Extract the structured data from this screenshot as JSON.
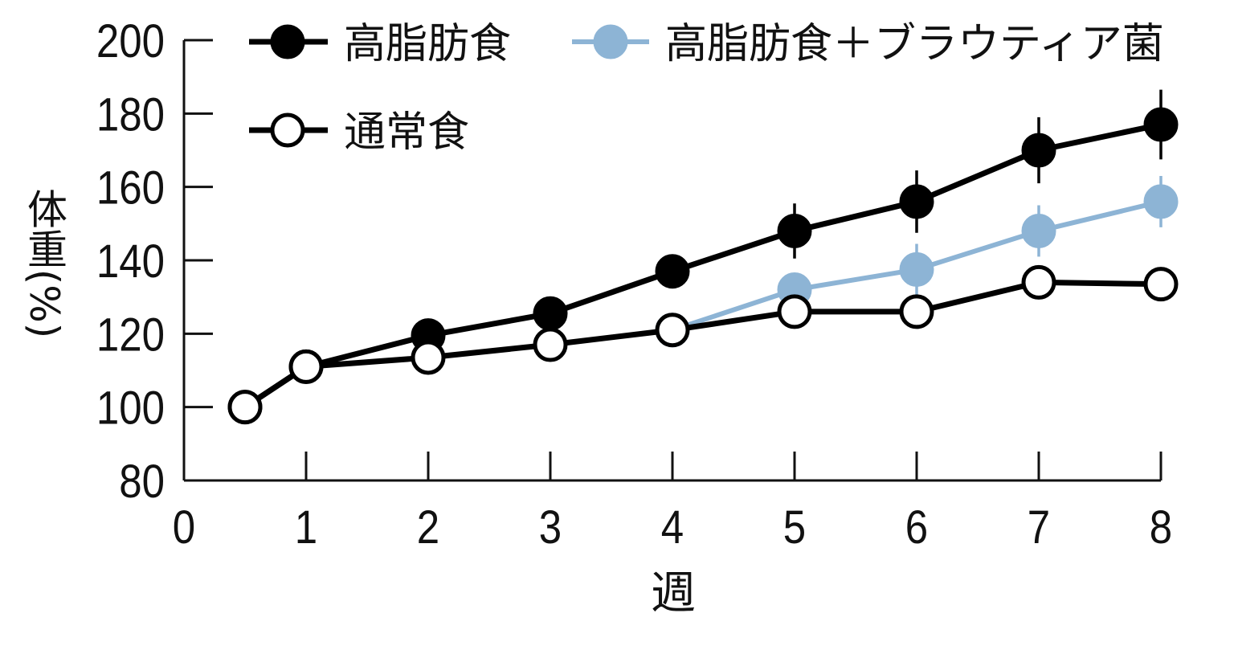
{
  "chart_data": {
    "type": "line",
    "xlabel": "週",
    "ylabel": "体重(%)",
    "xlim": [
      0,
      8
    ],
    "ylim": [
      80,
      200
    ],
    "xticks": [
      0,
      1,
      2,
      3,
      4,
      5,
      6,
      7,
      8
    ],
    "yticks": [
      80,
      100,
      120,
      140,
      160,
      180,
      200
    ],
    "grid": false,
    "legend_position": "top-left",
    "series": [
      {
        "name": "高脂肪食",
        "color": "#000000",
        "marker": "filled-circle",
        "x": [
          0.5,
          1,
          2,
          3,
          4,
          5,
          6,
          7,
          8
        ],
        "y": [
          100,
          111,
          119.5,
          125.5,
          137,
          148,
          156,
          170,
          177
        ],
        "error": [
          null,
          null,
          null,
          null,
          null,
          7.5,
          8.5,
          9,
          9.5
        ]
      },
      {
        "name": "高脂肪食＋ブラウティア菌",
        "color": "#8db4d5",
        "marker": "filled-circle",
        "x": [
          4,
          5,
          6,
          7,
          8
        ],
        "y": [
          121,
          132,
          137.5,
          148,
          156
        ],
        "error": [
          null,
          null,
          7,
          7,
          7
        ]
      },
      {
        "name": "通常食",
        "color": "#000000",
        "marker": "open-circle",
        "x": [
          0.5,
          1,
          2,
          3,
          4,
          5,
          6,
          7,
          8
        ],
        "y": [
          100,
          111,
          113.5,
          117,
          121,
          126,
          126,
          134,
          133.5
        ]
      }
    ]
  }
}
